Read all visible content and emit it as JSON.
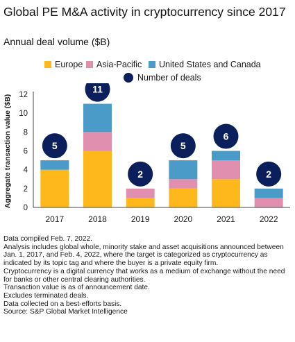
{
  "header": {
    "title": "Global PE M&A activity in cryptocurrency since 2017",
    "subtitle": "Annual deal volume ($B)"
  },
  "legend": {
    "europe": "Europe",
    "asia": "Asia-Pacific",
    "us": "United States and Canada",
    "deals": "Number of deals"
  },
  "colors": {
    "europe": "#FFB81C",
    "asia": "#E08FAE",
    "us": "#4A9BC7",
    "deals": "#0B1F5C",
    "axis": "#444444"
  },
  "chart_data": {
    "type": "bar",
    "stacked": true,
    "categories": [
      "2017",
      "2018",
      "2019",
      "2020",
      "2021",
      "2022"
    ],
    "series": [
      {
        "name": "Europe",
        "key": "europe",
        "values": [
          4,
          6,
          1,
          2,
          3,
          0
        ]
      },
      {
        "name": "Asia-Pacific",
        "key": "asia",
        "values": [
          0,
          2,
          1,
          1,
          2,
          1
        ]
      },
      {
        "name": "United States and Canada",
        "key": "us",
        "values": [
          1,
          3,
          0,
          2,
          1,
          1
        ]
      }
    ],
    "deals": {
      "name": "Number of deals",
      "values": [
        5,
        11,
        2,
        5,
        6,
        2
      ]
    },
    "ylabel": "Aggregate transaction value ($B)",
    "ylim": [
      0,
      12
    ],
    "yticks": [
      0,
      2,
      4,
      6,
      8,
      10,
      12
    ],
    "grid": false,
    "legend_position": "top"
  },
  "notes": [
    "Data compiled Feb. 7, 2022.",
    "Analysis includes global whole, minority stake and asset acquisitions announced between Jan. 1, 2017, and Feb. 4, 2022, where the target is categorized as cryptocurrency as indicated by its topic tag and where the buyer is a private equity firm.",
    "Cryptocurrency is a digital currency that works as a medium of exchange without the need for banks or other central clearing authorities.",
    "Transaction value is as of announcement date.",
    "Excludes terminated deals.",
    "Data collected on a best-efforts basis.",
    "Source: S&P Global Market Intelligence"
  ]
}
